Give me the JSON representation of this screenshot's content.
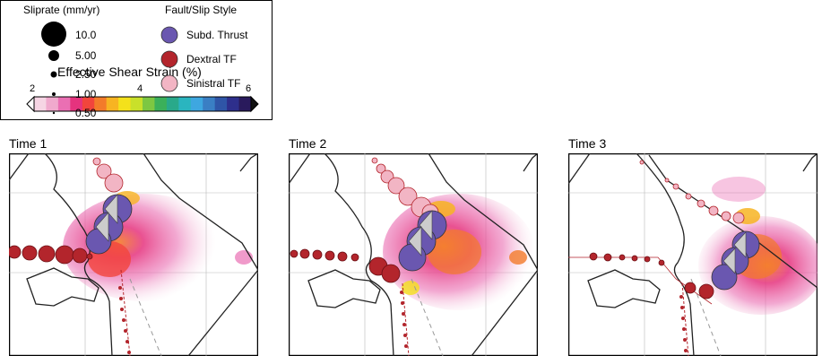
{
  "colorbar": {
    "title": "Effective Shear Strain (%)",
    "ticks": [
      "2",
      "4",
      "6"
    ],
    "colors": [
      "#f6d5e4",
      "#f0a9cd",
      "#ea6fb3",
      "#e5337e",
      "#f2453c",
      "#f37b2a",
      "#f7b422",
      "#f4e11b",
      "#c9e02a",
      "#7dc742",
      "#3bb05a",
      "#29a98a",
      "#2ab5bf",
      "#3ea7e0",
      "#3a7fc4",
      "#2f55a7",
      "#2e2f8c",
      "#291a5c"
    ]
  },
  "slip_legend": {
    "title": "Sliprate (mm/yr)",
    "rates": [
      "10.0",
      "5.00",
      "2.50",
      "1.00",
      "0.50"
    ]
  },
  "style_legend": {
    "title": "Fault/Slip Style",
    "items": [
      {
        "label": "Subd. Thrust",
        "color": "#6a57b0"
      },
      {
        "label": "Dextral TF",
        "color": "#b3252c"
      },
      {
        "label": "Sinistral TF",
        "color": "#f2b5c4"
      }
    ]
  },
  "panels": [
    {
      "title": "Time 1"
    },
    {
      "title": "Time 2"
    },
    {
      "title": "Time 3"
    }
  ]
}
